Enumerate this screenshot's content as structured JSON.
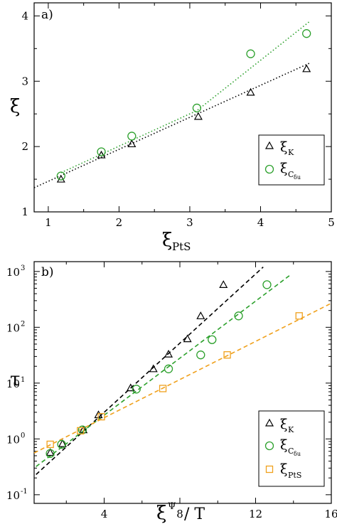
{
  "chart_data": [
    {
      "type": "scatter",
      "panel_label": "a)",
      "xlabel": "ξ",
      "xlabel_sub": "PtS",
      "ylabel": "ξ",
      "xlim": [
        0.8,
        5
      ],
      "ylim": [
        1,
        4.2
      ],
      "xticks": [
        1,
        2,
        3,
        4,
        5
      ],
      "yticks": [
        1,
        2,
        3,
        4
      ],
      "legend_position": "lower-right",
      "series": [
        {
          "name": "ξ",
          "name_sub": "K",
          "marker": "triangle",
          "color": "#000000",
          "x": [
            1.18,
            1.75,
            2.18,
            3.12,
            3.86,
            4.65
          ],
          "y": [
            1.5,
            1.87,
            2.04,
            2.46,
            2.83,
            3.19
          ],
          "fit": [
            [
              0.8,
              1.37
            ],
            [
              4.7,
              3.28
            ]
          ]
        },
        {
          "name": "ξ",
          "name_sub": "C",
          "name_subsub": "δu",
          "marker": "circle",
          "color": "#2ca02c",
          "x": [
            1.18,
            1.75,
            2.18,
            3.1,
            3.86,
            4.65
          ],
          "y": [
            1.55,
            1.92,
            2.16,
            2.59,
            3.42,
            3.73
          ],
          "fit": [
            [
              1.18,
              1.6
            ],
            [
              3.1,
              2.55
            ],
            [
              4.7,
              3.92
            ]
          ]
        }
      ]
    },
    {
      "type": "scatter",
      "panel_label": "b)",
      "xlabel": "ξ",
      "xlabel_sup": "Ψ",
      "xlabel_rest": " / T",
      "ylabel": "τ",
      "xlim": [
        0.3,
        16
      ],
      "ylog": true,
      "ylim": [
        0.07,
        1500
      ],
      "xticks": [
        4,
        8,
        12,
        16
      ],
      "yticks": [
        0.1,
        1,
        10,
        100,
        1000
      ],
      "yticklabels": [
        {
          "base": "10",
          "exp": "-1"
        },
        {
          "base": "10",
          "exp": "0"
        },
        {
          "base": "10",
          "exp": "1"
        },
        {
          "base": "10",
          "exp": "2"
        },
        {
          "base": "10",
          "exp": "3"
        }
      ],
      "legend_position": "lower-right",
      "series": [
        {
          "name": "ξ",
          "name_sub": "K",
          "marker": "triangle",
          "color": "#000000",
          "x": [
            1.15,
            1.8,
            2.9,
            3.7,
            5.4,
            6.6,
            7.4,
            8.4,
            9.1,
            10.3
          ],
          "y": [
            0.57,
            0.82,
            1.45,
            2.7,
            8.2,
            18,
            33,
            62,
            160,
            580
          ],
          "fit": [
            [
              0.4,
              0.23
            ],
            [
              12.4,
              1200
            ]
          ]
        },
        {
          "name": "ξ",
          "name_sub": "C",
          "name_subsub": "δu",
          "marker": "circle",
          "color": "#2ca02c",
          "x": [
            1.15,
            1.75,
            2.85,
            5.7,
            7.4,
            9.1,
            9.7,
            11.1,
            12.6
          ],
          "y": [
            0.55,
            0.8,
            1.45,
            7.8,
            18,
            32,
            60,
            160,
            580
          ],
          "fit": [
            [
              0.4,
              0.32
            ],
            [
              13.9,
              900
            ]
          ]
        },
        {
          "name": "ξ",
          "name_sub": "PtS",
          "marker": "square",
          "color": "#f0a11d",
          "x": [
            1.15,
            2.75,
            3.85,
            7.1,
            10.5,
            14.3
          ],
          "y": [
            0.8,
            1.4,
            2.5,
            8.0,
            32,
            160
          ],
          "fit": [
            [
              0.3,
              0.56
            ],
            [
              16,
              270
            ]
          ]
        }
      ]
    }
  ]
}
